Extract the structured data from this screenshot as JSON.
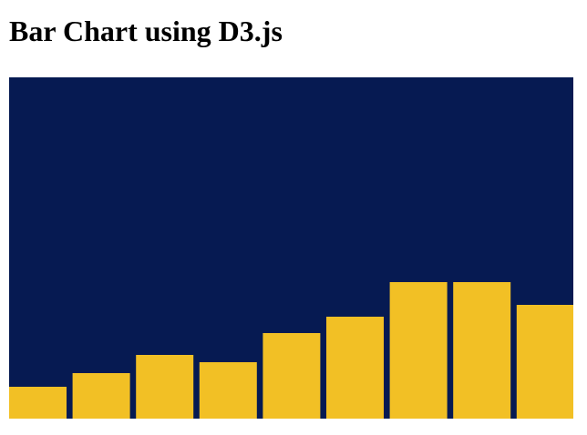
{
  "page": {
    "title": "Bar Chart using D3.js"
  },
  "colors": {
    "background": "#061a52",
    "bar": "#f2c025"
  },
  "chart_data": {
    "type": "bar",
    "title": "",
    "xlabel": "",
    "ylabel": "",
    "categories": [
      "",
      "",
      "",
      "",
      "",
      "",
      "",
      "",
      ""
    ],
    "values": [
      35,
      50,
      70,
      62,
      94,
      112,
      150,
      150,
      125
    ],
    "ylim": [
      0,
      375
    ],
    "grid": false,
    "legend": "none"
  }
}
